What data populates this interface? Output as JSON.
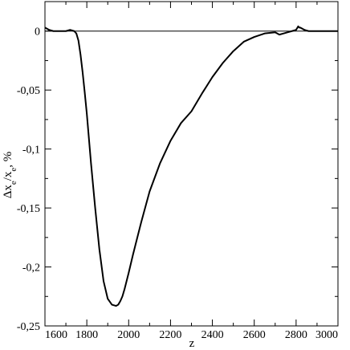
{
  "chart_data": {
    "type": "line",
    "title": "",
    "xlabel": "z",
    "ylabel": "Δx_e/x_e, %",
    "ylabel_parts": {
      "delta_x": "Δx",
      "sub1": "e",
      "slash_x": "/x",
      "sub2": "e",
      "unit": ", %"
    },
    "xlim": [
      1600,
      3000
    ],
    "ylim": [
      -0.25,
      0.025
    ],
    "xticks": [
      1600,
      1800,
      2000,
      2200,
      2400,
      2600,
      2800,
      3000
    ],
    "xtick_labels": [
      "1600",
      "1800",
      "2000",
      "2200",
      "2400",
      "2600",
      "2800",
      "3000"
    ],
    "yticks": [
      0,
      -0.05,
      -0.1,
      -0.15,
      -0.2,
      -0.25
    ],
    "ytick_labels": [
      "0",
      "-0,05",
      "-0,1",
      "-0,15",
      "-0,2",
      "-0,25"
    ],
    "zero_line": true,
    "grid": false,
    "series": [
      {
        "color": "#000000",
        "x": [
          1600,
          1620,
          1640,
          1660,
          1680,
          1700,
          1720,
          1740,
          1750,
          1760,
          1770,
          1780,
          1790,
          1800,
          1820,
          1840,
          1860,
          1880,
          1900,
          1920,
          1940,
          1950,
          1960,
          1970,
          1980,
          2000,
          2020,
          2040,
          2060,
          2080,
          2100,
          2150,
          2200,
          2250,
          2300,
          2350,
          2400,
          2450,
          2500,
          2550,
          2600,
          2650,
          2700,
          2720,
          2740,
          2760,
          2780,
          2800,
          2810,
          2815,
          2820,
          2840,
          2860,
          2880,
          2900,
          2950,
          3000
        ],
        "y": [
          0.003,
          0.001,
          0.0,
          0.0,
          0.0,
          0.0,
          0.001,
          0.0,
          -0.002,
          -0.008,
          -0.02,
          -0.035,
          -0.052,
          -0.07,
          -0.112,
          -0.15,
          -0.185,
          -0.212,
          -0.227,
          -0.232,
          -0.233,
          -0.232,
          -0.229,
          -0.225,
          -0.219,
          -0.205,
          -0.19,
          -0.176,
          -0.162,
          -0.149,
          -0.136,
          -0.112,
          -0.093,
          -0.078,
          -0.068,
          -0.053,
          -0.039,
          -0.027,
          -0.017,
          -0.009,
          -0.005,
          -0.002,
          -0.001,
          -0.003,
          -0.002,
          -0.001,
          0.0,
          0.001,
          0.004,
          0.003,
          0.003,
          0.001,
          0.0,
          0.0,
          0.0,
          0.0,
          0.0
        ]
      }
    ]
  }
}
